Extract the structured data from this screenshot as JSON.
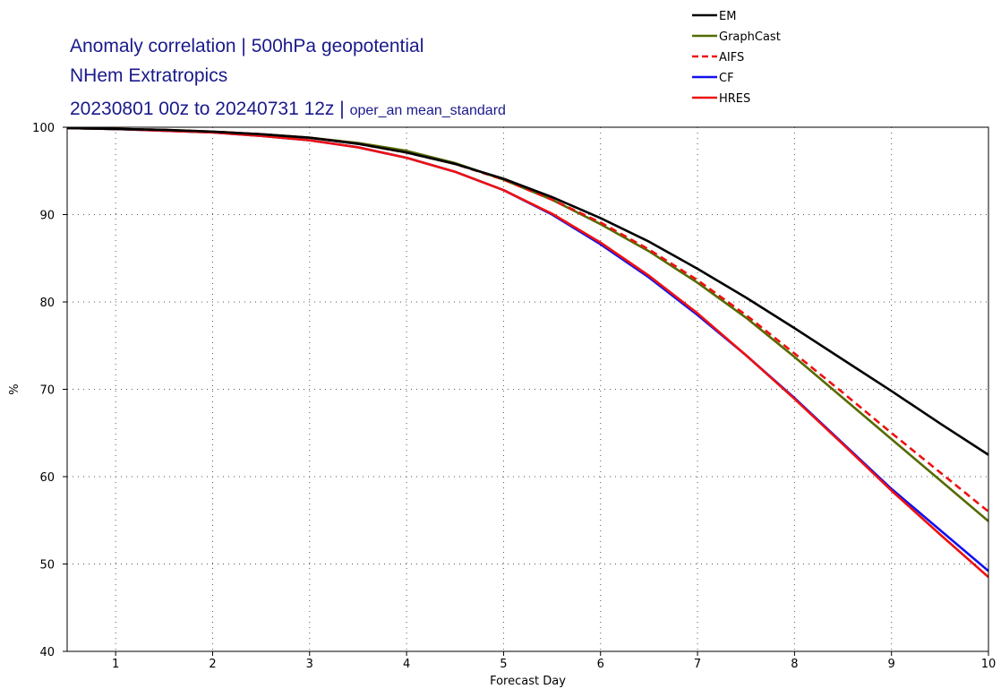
{
  "chart_data": {
    "type": "line",
    "title_line1": "Anomaly correlation | 500hPa geopotential",
    "title_line2": "NHem Extratropics",
    "title_line3_main": "20230801 00z to 20240731 12z | ",
    "title_line3_sub": "oper_an mean_standard",
    "xlabel": "Forecast Day",
    "ylabel": "%",
    "xlim": [
      0.5,
      10
    ],
    "ylim": [
      40,
      100
    ],
    "xticks": [
      1,
      2,
      3,
      4,
      5,
      6,
      7,
      8,
      9,
      10
    ],
    "yticks": [
      40,
      50,
      60,
      70,
      80,
      90,
      100
    ],
    "grid": true,
    "legend_position": "top-right, above plot",
    "x": [
      0.5,
      1,
      1.5,
      2,
      2.5,
      3,
      3.5,
      4,
      4.5,
      5,
      5.5,
      6,
      6.5,
      7,
      7.5,
      8,
      8.5,
      9,
      9.5,
      10
    ],
    "series": [
      {
        "name": "EM",
        "color": "#000000",
        "dash": "solid",
        "values": [
          99.9,
          99.8,
          99.7,
          99.5,
          99.2,
          98.8,
          98.1,
          97.1,
          95.8,
          94.1,
          92.0,
          89.6,
          86.9,
          83.8,
          80.5,
          77.0,
          73.4,
          69.8,
          66.1,
          62.5
        ]
      },
      {
        "name": "GraphCast",
        "color": "#556b00",
        "dash": "solid",
        "values": [
          99.9,
          99.8,
          99.7,
          99.5,
          99.2,
          98.8,
          98.2,
          97.3,
          95.9,
          94.0,
          91.7,
          88.9,
          85.8,
          82.2,
          78.2,
          73.7,
          69.0,
          64.3,
          59.6,
          54.9
        ]
      },
      {
        "name": "AIFS",
        "color": "#ee1111",
        "dash": "dashed",
        "values": [
          99.9,
          99.8,
          99.7,
          99.5,
          99.2,
          98.8,
          98.1,
          97.1,
          95.8,
          94.0,
          91.7,
          89.1,
          86.0,
          82.5,
          78.5,
          74.1,
          69.6,
          65.0,
          60.5,
          56.0
        ]
      },
      {
        "name": "CF",
        "color": "#1111ee",
        "dash": "solid",
        "values": [
          99.9,
          99.8,
          99.6,
          99.4,
          99.0,
          98.5,
          97.7,
          96.5,
          94.9,
          92.8,
          90.0,
          86.6,
          82.8,
          78.5,
          73.9,
          69.0,
          63.8,
          58.6,
          53.9,
          49.2
        ]
      },
      {
        "name": "HRES",
        "color": "#ee1111",
        "dash": "solid",
        "values": [
          99.9,
          99.8,
          99.6,
          99.4,
          99.0,
          98.5,
          97.7,
          96.5,
          94.9,
          92.8,
          90.1,
          86.8,
          83.0,
          78.7,
          73.9,
          68.9,
          63.7,
          58.4,
          53.4,
          48.5
        ]
      }
    ],
    "legend_order": [
      "EM",
      "GraphCast",
      "AIFS",
      "CF",
      "HRES"
    ],
    "draw_order": [
      "CF",
      "HRES",
      "GraphCast",
      "AIFS",
      "EM"
    ]
  }
}
